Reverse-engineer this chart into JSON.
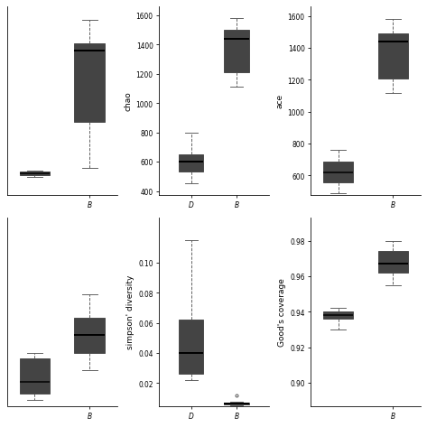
{
  "subplots": [
    {
      "row": 0,
      "col": 0,
      "ylabel": "",
      "yticks": [],
      "ylim": [
        700,
        1680
      ],
      "main_boxes": [
        {
          "label": "B",
          "color": "#4d8ab5",
          "whislo": 840,
          "q1": 1080,
          "med": 1450,
          "q3": 1490,
          "whishi": 1610,
          "fliers": []
        }
      ],
      "stub": {
        "color": "#8b1a1a",
        "q1": 800,
        "med": 810,
        "q3": 820,
        "whislo": 790,
        "whishi": 825
      },
      "xtick_labels": [
        "B"
      ],
      "xlim": [
        -0.5,
        1.5
      ]
    },
    {
      "row": 0,
      "col": 1,
      "ylabel": "chao",
      "yticks": [
        400,
        600,
        800,
        1000,
        1200,
        1400,
        1600
      ],
      "ylim": [
        375,
        1660
      ],
      "main_boxes": [
        {
          "label": "D",
          "color": "#c0392b",
          "whislo": 450,
          "q1": 530,
          "med": 600,
          "q3": 650,
          "whishi": 800,
          "fliers": []
        },
        {
          "label": "B",
          "color": "#4d8ab5",
          "whislo": 1115,
          "q1": 1210,
          "med": 1440,
          "q3": 1500,
          "whishi": 1580,
          "fliers": []
        }
      ],
      "stub": null,
      "xtick_labels": [
        "D",
        "B"
      ],
      "xlim": [
        0.3,
        2.7
      ]
    },
    {
      "row": 0,
      "col": 2,
      "ylabel": "ace",
      "yticks": [
        600,
        800,
        1000,
        1200,
        1400,
        1600
      ],
      "ylim": [
        480,
        1660
      ],
      "main_boxes": [
        {
          "label": "B",
          "color": "#4d8ab5",
          "whislo": 1115,
          "q1": 1210,
          "med": 1440,
          "q3": 1490,
          "whishi": 1580,
          "fliers": []
        }
      ],
      "stub": {
        "color": "#8b1a1a",
        "q1": 555,
        "med": 620,
        "q3": 690,
        "whislo": 490,
        "whishi": 760
      },
      "xtick_labels": [
        "B"
      ],
      "xlim": [
        -0.5,
        1.5
      ]
    },
    {
      "row": 1,
      "col": 0,
      "ylabel": "",
      "yticks": [],
      "ylim": [
        0.028,
        0.06
      ],
      "main_boxes": [
        {
          "label": "B",
          "color": "#4d8ab5",
          "whislo": 0.034,
          "q1": 0.037,
          "med": 0.04,
          "q3": 0.043,
          "whishi": 0.047,
          "fliers": []
        }
      ],
      "stub": {
        "color": "#8b1a1a",
        "q1": 0.03,
        "med": 0.032,
        "q3": 0.036,
        "whislo": 0.029,
        "whishi": 0.037
      },
      "xtick_labels": [
        "B"
      ],
      "xlim": [
        -0.5,
        1.5
      ]
    },
    {
      "row": 1,
      "col": 1,
      "ylabel": "simpson' diversity",
      "yticks": [
        0.02,
        0.04,
        0.06,
        0.08,
        0.1
      ],
      "ylim": [
        0.005,
        0.13
      ],
      "main_boxes": [
        {
          "label": "D",
          "color": "#c0392b",
          "whislo": 0.022,
          "q1": 0.026,
          "med": 0.04,
          "q3": 0.062,
          "whishi": 0.115,
          "fliers": []
        },
        {
          "label": "B",
          "color": "#c0392b",
          "whislo": 0.0055,
          "q1": 0.006,
          "med": 0.0065,
          "q3": 0.0072,
          "whishi": 0.0078,
          "fliers": [
            0.012
          ]
        }
      ],
      "stub": null,
      "xtick_labels": [
        "D",
        "B"
      ],
      "xlim": [
        0.3,
        2.7
      ]
    },
    {
      "row": 1,
      "col": 2,
      "ylabel": "Good's coverage",
      "yticks": [
        0.9,
        0.92,
        0.94,
        0.96,
        0.98
      ],
      "ylim": [
        0.887,
        0.993
      ],
      "main_boxes": [
        {
          "label": "B",
          "color": "#c0392b",
          "whislo": 0.955,
          "q1": 0.962,
          "med": 0.967,
          "q3": 0.974,
          "whishi": 0.98,
          "fliers": []
        }
      ],
      "stub": {
        "color": "#c0392b",
        "q1": 0.936,
        "med": 0.938,
        "q3": 0.94,
        "whislo": 0.93,
        "whishi": 0.942
      },
      "xtick_labels": [
        "B"
      ],
      "xlim": [
        -0.5,
        1.5
      ]
    }
  ],
  "blue_color": "#4d8ab5",
  "red_color": "#c0392b",
  "dark_red_color": "#8b1a1a",
  "figsize": [
    6.58,
    6.58
  ],
  "dpi": 72
}
